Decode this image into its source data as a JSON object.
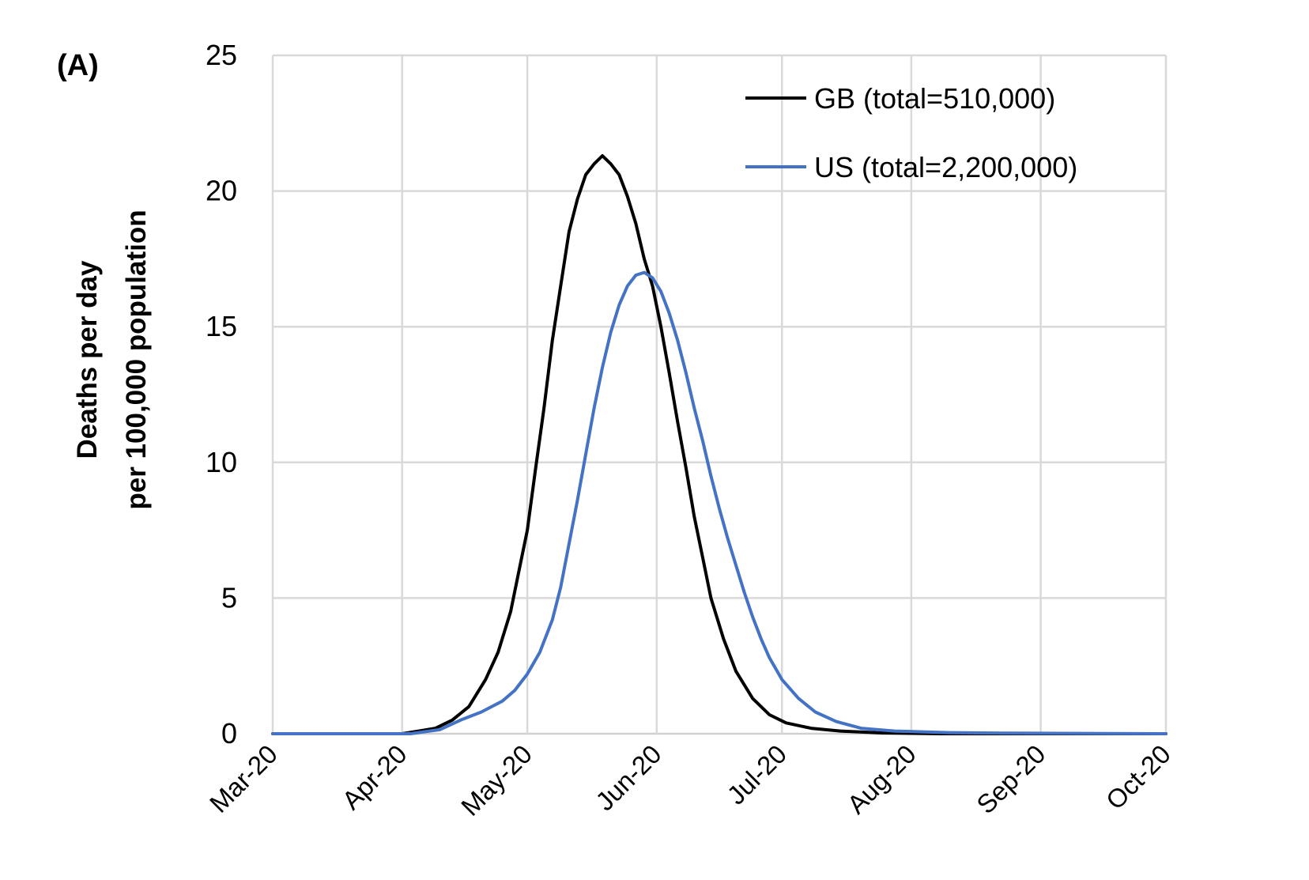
{
  "panel_label": "(A)",
  "chart_data": {
    "type": "line",
    "title": "",
    "ylabel_line1": "Deaths per day",
    "ylabel_line2": "per 100,000 population",
    "xlabel": "",
    "ylim": [
      0,
      25
    ],
    "yticks": [
      0,
      5,
      10,
      15,
      20,
      25
    ],
    "xlim": [
      "2020-03-01",
      "2020-10-01"
    ],
    "xticks": [
      {
        "date": "2020-03-01",
        "label": "Mar-20"
      },
      {
        "date": "2020-04-01",
        "label": "Apr-20"
      },
      {
        "date": "2020-05-01",
        "label": "May-20"
      },
      {
        "date": "2020-06-01",
        "label": "Jun-20"
      },
      {
        "date": "2020-07-01",
        "label": "Jul-20"
      },
      {
        "date": "2020-08-01",
        "label": "Aug-20"
      },
      {
        "date": "2020-09-01",
        "label": "Sep-20"
      },
      {
        "date": "2020-10-01",
        "label": "Oct-20"
      }
    ],
    "grid": true,
    "legend_position": "top-right",
    "series": [
      {
        "name": "GB (total=510,000)",
        "color": "#000000",
        "points": [
          [
            "2020-03-01",
            0
          ],
          [
            "2020-04-01",
            0
          ],
          [
            "2020-04-05",
            0.1
          ],
          [
            "2020-04-09",
            0.2
          ],
          [
            "2020-04-13",
            0.5
          ],
          [
            "2020-04-17",
            1.0
          ],
          [
            "2020-04-21",
            2.0
          ],
          [
            "2020-04-24",
            3.0
          ],
          [
            "2020-04-27",
            4.5
          ],
          [
            "2020-04-29",
            6.0
          ],
          [
            "2020-05-01",
            7.5
          ],
          [
            "2020-05-03",
            9.8
          ],
          [
            "2020-05-05",
            12.0
          ],
          [
            "2020-05-07",
            14.5
          ],
          [
            "2020-05-09",
            16.5
          ],
          [
            "2020-05-11",
            18.5
          ],
          [
            "2020-05-13",
            19.7
          ],
          [
            "2020-05-15",
            20.6
          ],
          [
            "2020-05-17",
            21.0
          ],
          [
            "2020-05-19",
            21.3
          ],
          [
            "2020-05-21",
            21.0
          ],
          [
            "2020-05-23",
            20.6
          ],
          [
            "2020-05-25",
            19.8
          ],
          [
            "2020-05-27",
            18.8
          ],
          [
            "2020-05-29",
            17.5
          ],
          [
            "2020-05-31",
            16.5
          ],
          [
            "2020-06-02",
            15.0
          ],
          [
            "2020-06-04",
            13.3
          ],
          [
            "2020-06-06",
            11.5
          ],
          [
            "2020-06-08",
            9.8
          ],
          [
            "2020-06-10",
            8.0
          ],
          [
            "2020-06-12",
            6.5
          ],
          [
            "2020-06-14",
            5.0
          ],
          [
            "2020-06-17",
            3.5
          ],
          [
            "2020-06-20",
            2.3
          ],
          [
            "2020-06-24",
            1.3
          ],
          [
            "2020-06-28",
            0.7
          ],
          [
            "2020-07-02",
            0.4
          ],
          [
            "2020-07-08",
            0.2
          ],
          [
            "2020-07-15",
            0.1
          ],
          [
            "2020-07-25",
            0.03
          ],
          [
            "2020-08-08",
            0
          ],
          [
            "2020-10-01",
            0
          ]
        ]
      },
      {
        "name": "US (total=2,200,000)",
        "color": "#4472C4",
        "points": [
          [
            "2020-03-01",
            0
          ],
          [
            "2020-04-03",
            0
          ],
          [
            "2020-04-10",
            0.15
          ],
          [
            "2020-04-15",
            0.5
          ],
          [
            "2020-04-20",
            0.8
          ],
          [
            "2020-04-25",
            1.2
          ],
          [
            "2020-04-28",
            1.6
          ],
          [
            "2020-05-01",
            2.2
          ],
          [
            "2020-05-04",
            3.0
          ],
          [
            "2020-05-07",
            4.2
          ],
          [
            "2020-05-09",
            5.4
          ],
          [
            "2020-05-11",
            7.0
          ],
          [
            "2020-05-13",
            8.6
          ],
          [
            "2020-05-15",
            10.3
          ],
          [
            "2020-05-17",
            12.0
          ],
          [
            "2020-05-19",
            13.5
          ],
          [
            "2020-05-21",
            14.8
          ],
          [
            "2020-05-23",
            15.8
          ],
          [
            "2020-05-25",
            16.5
          ],
          [
            "2020-05-27",
            16.9
          ],
          [
            "2020-05-29",
            17.0
          ],
          [
            "2020-05-31",
            16.8
          ],
          [
            "2020-06-02",
            16.3
          ],
          [
            "2020-06-04",
            15.5
          ],
          [
            "2020-06-06",
            14.5
          ],
          [
            "2020-06-08",
            13.3
          ],
          [
            "2020-06-10",
            12.0
          ],
          [
            "2020-06-12",
            10.8
          ],
          [
            "2020-06-14",
            9.5
          ],
          [
            "2020-06-16",
            8.3
          ],
          [
            "2020-06-18",
            7.2
          ],
          [
            "2020-06-20",
            6.2
          ],
          [
            "2020-06-22",
            5.2
          ],
          [
            "2020-06-24",
            4.3
          ],
          [
            "2020-06-26",
            3.5
          ],
          [
            "2020-06-28",
            2.8
          ],
          [
            "2020-07-01",
            2.0
          ],
          [
            "2020-07-05",
            1.3
          ],
          [
            "2020-07-09",
            0.8
          ],
          [
            "2020-07-14",
            0.45
          ],
          [
            "2020-07-20",
            0.2
          ],
          [
            "2020-07-28",
            0.1
          ],
          [
            "2020-08-10",
            0.04
          ],
          [
            "2020-08-25",
            0.02
          ],
          [
            "2020-10-01",
            0
          ]
        ]
      }
    ]
  }
}
